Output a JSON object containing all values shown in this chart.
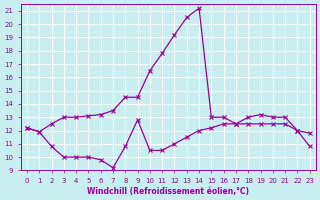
{
  "xlabel": "Windchill (Refroidissement éolien,°C)",
  "background_color": "#c8eef0",
  "grid_color": "#ffffff",
  "line_color": "#990099",
  "xlim": [
    -0.5,
    23.5
  ],
  "ylim": [
    9,
    21.5
  ],
  "x_ticks": [
    0,
    1,
    2,
    3,
    4,
    5,
    6,
    7,
    8,
    9,
    10,
    11,
    12,
    13,
    14,
    15,
    16,
    17,
    18,
    19,
    20,
    21,
    22,
    23
  ],
  "y_ticks": [
    9,
    10,
    11,
    12,
    13,
    14,
    15,
    16,
    17,
    18,
    19,
    20,
    21
  ],
  "series1_x": [
    0,
    1,
    2,
    3,
    4,
    5,
    6,
    7,
    8,
    9,
    10,
    11,
    12,
    13,
    14,
    15,
    16,
    17,
    18,
    19,
    20,
    21,
    22,
    23
  ],
  "series1_y": [
    12.2,
    11.9,
    12.5,
    13.0,
    13.0,
    13.1,
    13.2,
    13.5,
    14.5,
    14.5,
    16.5,
    17.8,
    19.2,
    20.5,
    21.2,
    13.0,
    13.0,
    12.5,
    13.0,
    13.2,
    13.0,
    13.0,
    12.0,
    11.8
  ],
  "series2_x": [
    0,
    1,
    2,
    3,
    4,
    5,
    6,
    7,
    8,
    9,
    10,
    11,
    12,
    13,
    14,
    15,
    16,
    17,
    18,
    19,
    20,
    21,
    22,
    23
  ],
  "series2_y": [
    12.2,
    11.9,
    10.8,
    10.0,
    10.0,
    10.0,
    9.8,
    9.2,
    10.8,
    12.8,
    10.5,
    10.5,
    11.0,
    11.5,
    12.0,
    12.2,
    12.5,
    12.5,
    12.5,
    12.5,
    12.5,
    12.5,
    12.0,
    10.8
  ]
}
